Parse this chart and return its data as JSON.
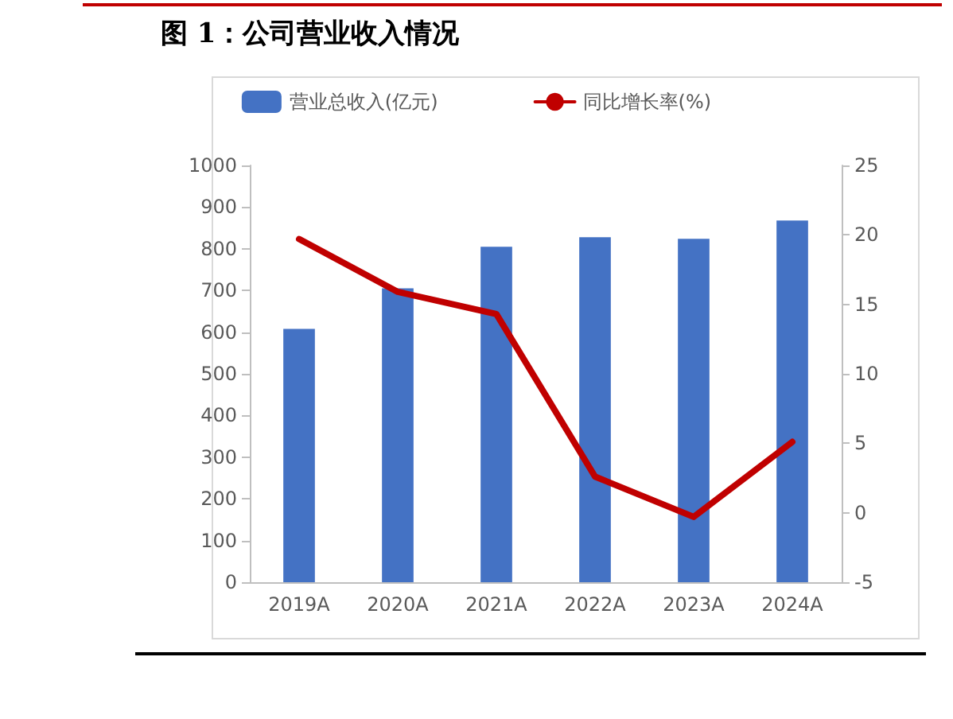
{
  "chart_data": {
    "type": "bar",
    "title": "图 1：公司营业收入情况",
    "categories": [
      "2019A",
      "2020A",
      "2021A",
      "2022A",
      "2023A",
      "2024A"
    ],
    "series": [
      {
        "name": "营业总收入(亿元)",
        "color": "#4472c4",
        "values": [
          608,
          705,
          805,
          828,
          824,
          868
        ]
      },
      {
        "name": "同比增长率(%)",
        "type": "line",
        "axis": "y2",
        "color": "#c00000",
        "values": [
          19.7,
          15.9,
          14.3,
          2.6,
          -0.3,
          5.1
        ]
      }
    ],
    "ylim": [
      0,
      1000
    ],
    "yticks": [
      0,
      100,
      200,
      300,
      400,
      500,
      600,
      700,
      800,
      900,
      1000
    ],
    "y2lim": [
      -5,
      25
    ],
    "y2ticks": [
      -5,
      0,
      5,
      10,
      15,
      20,
      25
    ],
    "grid": false,
    "legend": "top",
    "marker": "none"
  }
}
